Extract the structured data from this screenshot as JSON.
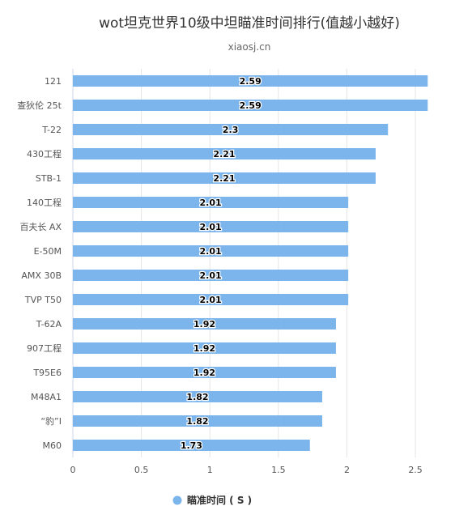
{
  "chart_data": {
    "type": "bar",
    "orientation": "horizontal",
    "title": "wot坦克世界10级中坦瞄准时间排行(值越小越好)",
    "subtitle": "xiaosj.cn",
    "categories": [
      "121",
      "查狄伦 25t",
      "T-22",
      "430工程",
      "STB-1",
      "140工程",
      "百夫长 AX",
      "E-50M",
      "AMX 30B",
      "TVP T50",
      "T-62A",
      "907工程",
      "T95E6",
      "M48A1",
      "“豹”I",
      "M60"
    ],
    "series": [
      {
        "name": "瞄准时间 ( S )",
        "values": [
          2.59,
          2.59,
          2.3,
          2.21,
          2.21,
          2.01,
          2.01,
          2.01,
          2.01,
          2.01,
          1.92,
          1.92,
          1.92,
          1.82,
          1.82,
          1.73
        ],
        "labels": [
          "2.59",
          "2.59",
          "2.3",
          "2.21",
          "2.21",
          "2.01",
          "2.01",
          "2.01",
          "2.01",
          "2.01",
          "1.92",
          "1.92",
          "1.92",
          "1.82",
          "1.82",
          "1.73"
        ]
      }
    ],
    "xlim": [
      0,
      2.6
    ],
    "xticks": [
      "0",
      "0.5",
      "1",
      "1.5",
      "2",
      "2.5"
    ],
    "grid": true,
    "legend_position": "bottom-center",
    "colors": {
      "bar": "#7cb5ec",
      "grid": "#e6e6e6",
      "axis": "#ccd6eb"
    }
  }
}
